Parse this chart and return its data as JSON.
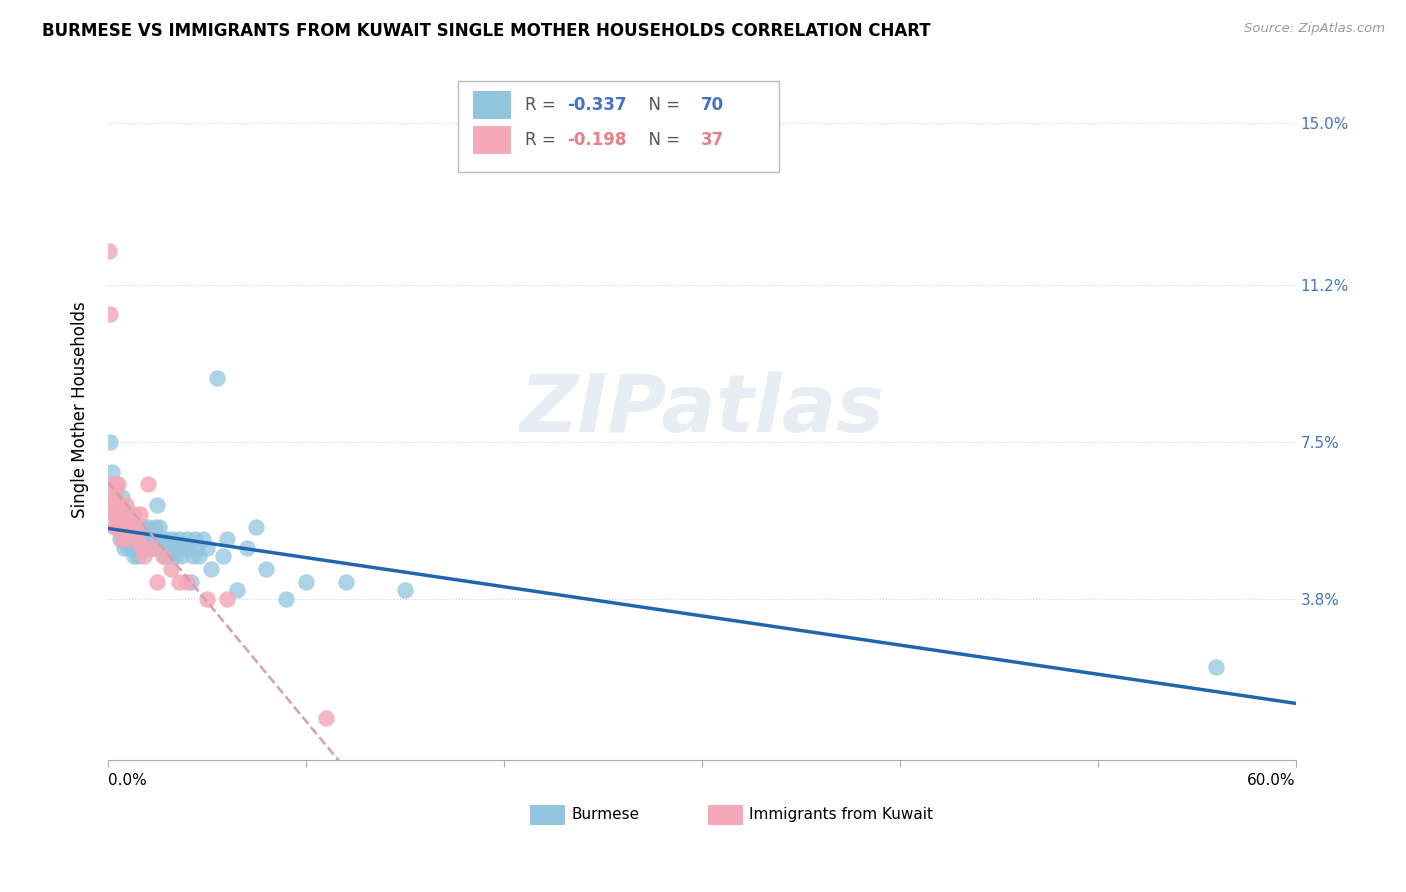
{
  "title": "BURMESE VS IMMIGRANTS FROM KUWAIT SINGLE MOTHER HOUSEHOLDS CORRELATION CHART",
  "source": "Source: ZipAtlas.com",
  "ylabel": "Single Mother Households",
  "ytick_labels": [
    "15.0%",
    "11.2%",
    "7.5%",
    "3.8%"
  ],
  "ytick_values": [
    0.15,
    0.112,
    0.075,
    0.038
  ],
  "xmin": 0.0,
  "xmax": 0.6,
  "ymin": 0.0,
  "ymax": 0.165,
  "series1_label": "Burmese",
  "series2_label": "Immigrants from Kuwait",
  "series1_color": "#92c5de",
  "series2_color": "#f4a8b8",
  "series1_line_color": "#2166ac",
  "series2_line_color": "#d4a0b0",
  "background_color": "#ffffff",
  "watermark_text": "ZIPatlas",
  "legend_r1": "-0.337",
  "legend_n1": "70",
  "legend_r2": "-0.198",
  "legend_n2": "37",
  "legend_color1": "#4472c4",
  "legend_color2": "#e87e8a",
  "burmese_x": [
    0.001,
    0.002,
    0.003,
    0.004,
    0.005,
    0.005,
    0.006,
    0.006,
    0.007,
    0.007,
    0.008,
    0.008,
    0.009,
    0.009,
    0.01,
    0.01,
    0.011,
    0.011,
    0.012,
    0.012,
    0.013,
    0.013,
    0.014,
    0.015,
    0.015,
    0.016,
    0.017,
    0.018,
    0.019,
    0.02,
    0.021,
    0.022,
    0.023,
    0.024,
    0.025,
    0.026,
    0.027,
    0.028,
    0.029,
    0.03,
    0.031,
    0.032,
    0.033,
    0.034,
    0.035,
    0.036,
    0.037,
    0.038,
    0.04,
    0.041,
    0.042,
    0.043,
    0.044,
    0.045,
    0.046,
    0.048,
    0.05,
    0.052,
    0.055,
    0.058,
    0.06,
    0.065,
    0.07,
    0.075,
    0.08,
    0.09,
    0.1,
    0.12,
    0.15,
    0.56
  ],
  "burmese_y": [
    0.075,
    0.068,
    0.058,
    0.065,
    0.06,
    0.055,
    0.058,
    0.052,
    0.062,
    0.055,
    0.058,
    0.05,
    0.055,
    0.052,
    0.058,
    0.05,
    0.055,
    0.052,
    0.055,
    0.05,
    0.052,
    0.048,
    0.052,
    0.05,
    0.048,
    0.052,
    0.055,
    0.05,
    0.052,
    0.055,
    0.05,
    0.052,
    0.05,
    0.055,
    0.06,
    0.055,
    0.052,
    0.05,
    0.048,
    0.052,
    0.048,
    0.05,
    0.052,
    0.048,
    0.05,
    0.052,
    0.048,
    0.05,
    0.052,
    0.05,
    0.042,
    0.048,
    0.052,
    0.05,
    0.048,
    0.052,
    0.05,
    0.045,
    0.09,
    0.048,
    0.052,
    0.04,
    0.05,
    0.055,
    0.045,
    0.038,
    0.042,
    0.042,
    0.04,
    0.022
  ],
  "kuwait_x": [
    0.0005,
    0.001,
    0.001,
    0.002,
    0.002,
    0.003,
    0.003,
    0.004,
    0.004,
    0.005,
    0.005,
    0.006,
    0.006,
    0.007,
    0.007,
    0.008,
    0.008,
    0.009,
    0.01,
    0.011,
    0.012,
    0.013,
    0.014,
    0.015,
    0.016,
    0.017,
    0.018,
    0.02,
    0.022,
    0.025,
    0.028,
    0.032,
    0.036,
    0.04,
    0.05,
    0.06,
    0.11
  ],
  "kuwait_y": [
    0.12,
    0.105,
    0.062,
    0.065,
    0.058,
    0.06,
    0.055,
    0.062,
    0.055,
    0.065,
    0.058,
    0.06,
    0.055,
    0.058,
    0.052,
    0.058,
    0.055,
    0.06,
    0.058,
    0.055,
    0.052,
    0.058,
    0.055,
    0.052,
    0.058,
    0.05,
    0.048,
    0.065,
    0.05,
    0.042,
    0.048,
    0.045,
    0.042,
    0.042,
    0.038,
    0.038,
    0.01
  ]
}
